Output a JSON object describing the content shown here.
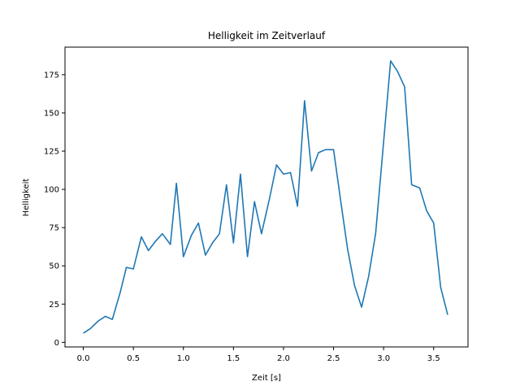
{
  "chart_data": {
    "type": "line",
    "title": "Helligkeit im Zeitverlauf",
    "xlabel": "Zeit [s]",
    "ylabel": "Helligkeit",
    "xlim": [
      -0.183,
      3.843
    ],
    "ylim": [
      -3.0,
      193.0
    ],
    "xticks": [
      0.0,
      0.5,
      1.0,
      1.5,
      2.0,
      2.5,
      3.0,
      3.5
    ],
    "xtick_labels": [
      "0.0",
      "0.5",
      "1.0",
      "1.5",
      "2.0",
      "2.5",
      "3.0",
      "3.5"
    ],
    "yticks": [
      0,
      25,
      50,
      75,
      100,
      125,
      150,
      175
    ],
    "ytick_labels": [
      "0",
      "25",
      "50",
      "75",
      "100",
      "125",
      "150",
      "175"
    ],
    "grid": false,
    "color": "#1f77b4",
    "series": [
      {
        "x": [
          0.0,
          0.07,
          0.15,
          0.22,
          0.29,
          0.37,
          0.43,
          0.5,
          0.58,
          0.65,
          0.72,
          0.79,
          0.87,
          0.93,
          1.0,
          1.08,
          1.15,
          1.22,
          1.29,
          1.36,
          1.43,
          1.5,
          1.57,
          1.64,
          1.71,
          1.78,
          1.86,
          1.93,
          2.0,
          2.07,
          2.14,
          2.21,
          2.28,
          2.35,
          2.42,
          2.5,
          2.57,
          2.64,
          2.71,
          2.78,
          2.85,
          2.92,
          3.0,
          3.07,
          3.14,
          3.21,
          3.28,
          3.36,
          3.43,
          3.5,
          3.57,
          3.64
        ],
        "y": [
          6,
          9,
          14,
          17,
          15,
          33,
          49,
          48,
          69,
          60,
          66,
          71,
          64,
          104,
          56,
          70,
          78,
          57,
          65,
          71,
          103,
          65,
          110,
          56,
          92,
          71,
          94,
          116,
          110,
          111,
          89,
          158,
          112,
          124,
          126,
          126,
          93,
          61,
          37,
          23,
          43,
          71,
          131,
          184,
          177,
          167,
          103,
          101,
          86,
          78,
          36,
          18
        ]
      }
    ]
  }
}
